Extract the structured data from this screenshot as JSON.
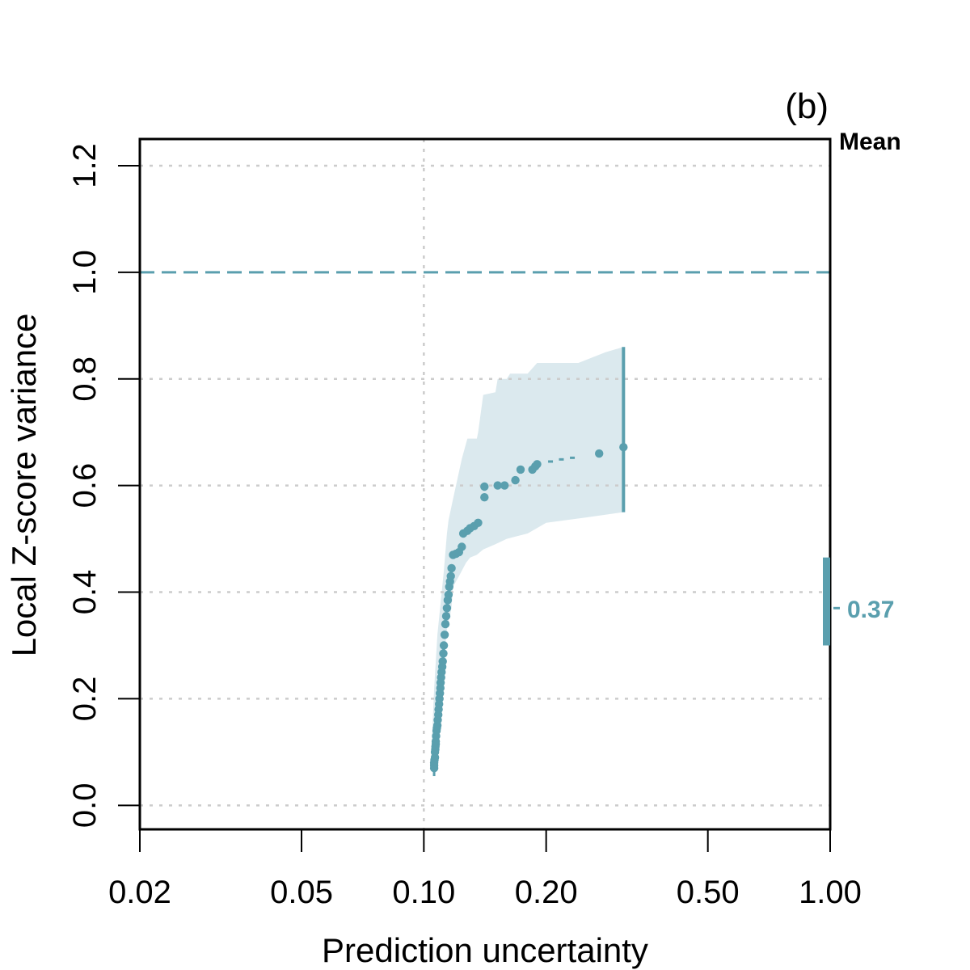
{
  "chart_data": {
    "type": "scatter",
    "panel_label": "(b)",
    "xlabel": "Prediction uncertainty",
    "ylabel": "Local Z-score variance",
    "x_scale": "log",
    "xlim": [
      0.02,
      1.0
    ],
    "ylim": [
      -0.045,
      1.25
    ],
    "x_ticks": [
      0.02,
      0.05,
      0.1,
      0.2,
      0.5,
      1.0
    ],
    "x_tick_labels": [
      "0.02",
      "0.05",
      "0.10",
      "0.20",
      "0.50",
      "1.00"
    ],
    "y_ticks": [
      0.0,
      0.2,
      0.4,
      0.6,
      0.8,
      1.0,
      1.2
    ],
    "y_tick_labels": [
      "0.0",
      "0.2",
      "0.4",
      "0.6",
      "0.8",
      "1.0",
      "1.2"
    ],
    "grid_y": [
      0.0,
      0.2,
      0.4,
      0.6,
      0.8,
      1.2
    ],
    "grid_x": [
      0.1
    ],
    "reference_line": {
      "y": 1.0,
      "style": "dashed"
    },
    "colors": {
      "series": "#5a9fae",
      "band": "#dbe9ee",
      "grid": "#cccccc",
      "axis": "#000000"
    },
    "series": [
      {
        "name": "Local Z-score variance",
        "points": [
          [
            0.106,
            0.07
          ],
          [
            0.106,
            0.075
          ],
          [
            0.106,
            0.08
          ],
          [
            0.1062,
            0.085
          ],
          [
            0.1065,
            0.09
          ],
          [
            0.1065,
            0.1
          ],
          [
            0.1067,
            0.105
          ],
          [
            0.1068,
            0.11
          ],
          [
            0.107,
            0.115
          ],
          [
            0.107,
            0.12
          ],
          [
            0.1072,
            0.13
          ],
          [
            0.1075,
            0.14
          ],
          [
            0.1077,
            0.145
          ],
          [
            0.108,
            0.15
          ],
          [
            0.1082,
            0.16
          ],
          [
            0.1085,
            0.17
          ],
          [
            0.1087,
            0.18
          ],
          [
            0.109,
            0.19
          ],
          [
            0.1092,
            0.2
          ],
          [
            0.1095,
            0.21
          ],
          [
            0.1098,
            0.22
          ],
          [
            0.11,
            0.23
          ],
          [
            0.1103,
            0.24
          ],
          [
            0.1106,
            0.25
          ],
          [
            0.111,
            0.26
          ],
          [
            0.1113,
            0.27
          ],
          [
            0.1117,
            0.285
          ],
          [
            0.112,
            0.3
          ],
          [
            0.1125,
            0.32
          ],
          [
            0.113,
            0.34
          ],
          [
            0.1135,
            0.355
          ],
          [
            0.114,
            0.37
          ],
          [
            0.1145,
            0.385
          ],
          [
            0.115,
            0.395
          ],
          [
            0.1155,
            0.41
          ],
          [
            0.116,
            0.42
          ],
          [
            0.1165,
            0.43
          ],
          [
            0.117,
            0.445
          ],
          [
            0.118,
            0.47
          ],
          [
            0.12,
            0.472
          ],
          [
            0.122,
            0.475
          ],
          [
            0.124,
            0.485
          ],
          [
            0.125,
            0.51
          ],
          [
            0.128,
            0.515
          ],
          [
            0.13,
            0.52
          ],
          [
            0.133,
            0.524
          ],
          [
            0.136,
            0.53
          ],
          [
            0.141,
            0.578
          ],
          [
            0.141,
            0.598
          ],
          [
            0.152,
            0.6
          ],
          [
            0.158,
            0.6
          ],
          [
            0.168,
            0.61
          ],
          [
            0.173,
            0.63
          ],
          [
            0.185,
            0.63
          ],
          [
            0.188,
            0.636
          ],
          [
            0.19,
            0.64
          ],
          [
            0.27,
            0.66
          ],
          [
            0.31,
            0.672
          ]
        ],
        "dashes": [
          [
            0.205,
            0.645
          ],
          [
            0.218,
            0.649
          ],
          [
            0.232,
            0.652
          ]
        ],
        "band_upper": [
          [
            0.104,
            0.075
          ],
          [
            0.106,
            0.22
          ],
          [
            0.108,
            0.32
          ],
          [
            0.11,
            0.38
          ],
          [
            0.112,
            0.44
          ],
          [
            0.114,
            0.51
          ],
          [
            0.115,
            0.535
          ],
          [
            0.118,
            0.575
          ],
          [
            0.124,
            0.65
          ],
          [
            0.128,
            0.688
          ],
          [
            0.135,
            0.688
          ],
          [
            0.136,
            0.7
          ],
          [
            0.14,
            0.77
          ],
          [
            0.15,
            0.775
          ],
          [
            0.152,
            0.8
          ],
          [
            0.16,
            0.8
          ],
          [
            0.163,
            0.81
          ],
          [
            0.18,
            0.81
          ],
          [
            0.19,
            0.83
          ],
          [
            0.24,
            0.83
          ],
          [
            0.28,
            0.85
          ],
          [
            0.31,
            0.86
          ]
        ],
        "band_lower": [
          [
            0.31,
            0.55
          ],
          [
            0.25,
            0.54
          ],
          [
            0.2,
            0.53
          ],
          [
            0.18,
            0.51
          ],
          [
            0.16,
            0.5
          ],
          [
            0.15,
            0.49
          ],
          [
            0.14,
            0.48
          ],
          [
            0.135,
            0.47
          ],
          [
            0.13,
            0.465
          ],
          [
            0.127,
            0.455
          ],
          [
            0.122,
            0.43
          ],
          [
            0.12,
            0.42
          ],
          [
            0.118,
            0.41
          ],
          [
            0.117,
            0.37
          ],
          [
            0.114,
            0.33
          ],
          [
            0.112,
            0.27
          ],
          [
            0.11,
            0.2
          ],
          [
            0.108,
            0.14
          ],
          [
            0.106,
            0.07
          ]
        ],
        "error_bar": {
          "x": 0.31,
          "low": 0.55,
          "high": 0.86
        },
        "stem": {
          "x": 0.106,
          "low": 0.055,
          "high": 0.07
        }
      }
    ],
    "mean": {
      "label": "Mean",
      "value_label": "0.37",
      "value": 0.37,
      "ci_low": 0.3,
      "ci_high": 0.465
    }
  }
}
